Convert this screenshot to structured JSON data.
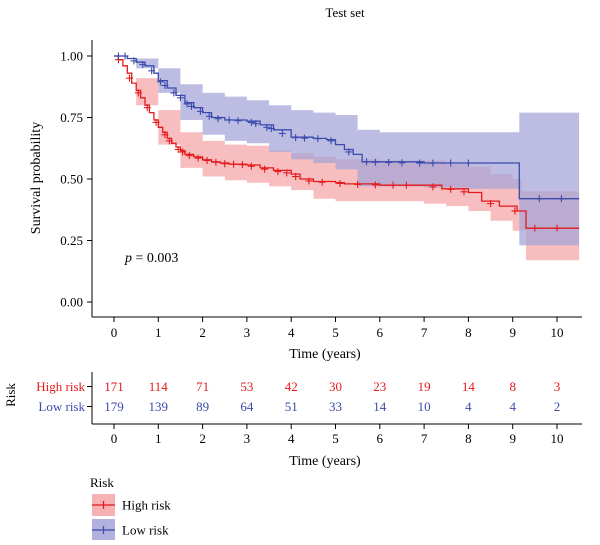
{
  "chart_data": {
    "type": "line",
    "title": "Test set",
    "xlabel": "Time (years)",
    "ylabel": "Survival probability",
    "xlim": [
      -0.5,
      10.5
    ],
    "ylim": [
      0,
      1
    ],
    "xticks": [
      "0",
      "1",
      "2",
      "3",
      "4",
      "5",
      "6",
      "7",
      "8",
      "9",
      "10"
    ],
    "yticks": [
      "0.00",
      "0.25",
      "0.50",
      "0.75",
      "1.00"
    ],
    "annotation": {
      "label": "p",
      "text": " = 0.003",
      "x": 0.2,
      "y": 0.36
    },
    "series": [
      {
        "name": "High risk",
        "color": "#e41a1c",
        "fill": "#f5a3a5",
        "curve": [
          [
            0,
            1.0
          ],
          [
            0.1,
            0.985
          ],
          [
            0.2,
            0.96
          ],
          [
            0.3,
            0.93
          ],
          [
            0.4,
            0.89
          ],
          [
            0.5,
            0.86
          ],
          [
            0.6,
            0.83
          ],
          [
            0.7,
            0.8
          ],
          [
            0.8,
            0.77
          ],
          [
            0.9,
            0.74
          ],
          [
            1.0,
            0.71
          ],
          [
            1.1,
            0.69
          ],
          [
            1.2,
            0.665
          ],
          [
            1.3,
            0.645
          ],
          [
            1.4,
            0.63
          ],
          [
            1.5,
            0.615
          ],
          [
            1.6,
            0.6
          ],
          [
            1.8,
            0.59
          ],
          [
            2.0,
            0.578
          ],
          [
            2.2,
            0.57
          ],
          [
            2.4,
            0.565
          ],
          [
            2.6,
            0.56
          ],
          [
            2.8,
            0.56
          ],
          [
            3.0,
            0.557
          ],
          [
            3.3,
            0.545
          ],
          [
            3.6,
            0.535
          ],
          [
            4.0,
            0.52
          ],
          [
            4.2,
            0.5
          ],
          [
            4.5,
            0.49
          ],
          [
            5.0,
            0.485
          ],
          [
            5.2,
            0.48
          ],
          [
            6.0,
            0.475
          ],
          [
            7.0,
            0.475
          ],
          [
            7.4,
            0.46
          ],
          [
            8.0,
            0.445
          ],
          [
            8.3,
            0.41
          ],
          [
            8.7,
            0.39
          ],
          [
            9.1,
            0.37
          ],
          [
            9.3,
            0.3
          ],
          [
            10.5,
            0.3
          ]
        ],
        "ci_upper": [
          [
            0,
            1.0
          ],
          [
            0.5,
            0.91
          ],
          [
            1.0,
            0.78
          ],
          [
            1.5,
            0.69
          ],
          [
            2.0,
            0.655
          ],
          [
            2.5,
            0.64
          ],
          [
            3.0,
            0.635
          ],
          [
            3.5,
            0.615
          ],
          [
            4.0,
            0.605
          ],
          [
            4.5,
            0.59
          ],
          [
            5.0,
            0.58
          ],
          [
            6.0,
            0.575
          ],
          [
            7.0,
            0.575
          ],
          [
            7.5,
            0.56
          ],
          [
            8.0,
            0.55
          ],
          [
            8.5,
            0.52
          ],
          [
            9.0,
            0.5
          ],
          [
            9.2,
            0.45
          ],
          [
            10.5,
            0.45
          ]
        ],
        "ci_lower": [
          [
            0,
            1.0
          ],
          [
            0.5,
            0.8
          ],
          [
            1.0,
            0.64
          ],
          [
            1.5,
            0.545
          ],
          [
            2.0,
            0.51
          ],
          [
            2.5,
            0.495
          ],
          [
            3.0,
            0.485
          ],
          [
            3.5,
            0.47
          ],
          [
            4.0,
            0.455
          ],
          [
            4.5,
            0.42
          ],
          [
            5.0,
            0.41
          ],
          [
            6.0,
            0.41
          ],
          [
            7.0,
            0.4
          ],
          [
            7.5,
            0.39
          ],
          [
            8.0,
            0.37
          ],
          [
            8.5,
            0.33
          ],
          [
            9.0,
            0.29
          ],
          [
            9.3,
            0.17
          ],
          [
            10.5,
            0.17
          ]
        ],
        "censors": [
          [
            0.1,
            0.985
          ],
          [
            0.35,
            0.91
          ],
          [
            0.55,
            0.85
          ],
          [
            0.75,
            0.79
          ],
          [
            0.95,
            0.73
          ],
          [
            1.15,
            0.68
          ],
          [
            1.25,
            0.655
          ],
          [
            1.45,
            0.62
          ],
          [
            1.55,
            0.61
          ],
          [
            1.7,
            0.595
          ],
          [
            1.9,
            0.585
          ],
          [
            2.1,
            0.575
          ],
          [
            2.3,
            0.568
          ],
          [
            2.5,
            0.562
          ],
          [
            2.7,
            0.56
          ],
          [
            2.9,
            0.558
          ],
          [
            3.1,
            0.552
          ],
          [
            3.4,
            0.54
          ],
          [
            3.7,
            0.53
          ],
          [
            3.9,
            0.525
          ],
          [
            4.1,
            0.51
          ],
          [
            4.4,
            0.492
          ],
          [
            4.7,
            0.487
          ],
          [
            5.1,
            0.482
          ],
          [
            5.5,
            0.478
          ],
          [
            5.9,
            0.476
          ],
          [
            6.3,
            0.475
          ],
          [
            6.6,
            0.475
          ],
          [
            7.2,
            0.468
          ],
          [
            7.6,
            0.458
          ],
          [
            7.9,
            0.448
          ],
          [
            8.5,
            0.4
          ],
          [
            9.05,
            0.37
          ],
          [
            9.5,
            0.3
          ],
          [
            10.0,
            0.3
          ]
        ]
      },
      {
        "name": "Low risk",
        "color": "#3a4bab",
        "fill": "#a4a3d8",
        "curve": [
          [
            0,
            1.0
          ],
          [
            0.2,
            1.0
          ],
          [
            0.3,
            0.99
          ],
          [
            0.5,
            0.975
          ],
          [
            0.7,
            0.96
          ],
          [
            0.9,
            0.93
          ],
          [
            1.0,
            0.9
          ],
          [
            1.2,
            0.87
          ],
          [
            1.4,
            0.84
          ],
          [
            1.6,
            0.81
          ],
          [
            1.8,
            0.79
          ],
          [
            2.0,
            0.77
          ],
          [
            2.2,
            0.75
          ],
          [
            2.5,
            0.74
          ],
          [
            3.0,
            0.735
          ],
          [
            3.3,
            0.72
          ],
          [
            3.6,
            0.7
          ],
          [
            4.0,
            0.67
          ],
          [
            4.5,
            0.665
          ],
          [
            4.8,
            0.66
          ],
          [
            5.0,
            0.64
          ],
          [
            5.2,
            0.62
          ],
          [
            5.4,
            0.6
          ],
          [
            5.6,
            0.57
          ],
          [
            7.0,
            0.565
          ],
          [
            9.1,
            0.565
          ],
          [
            9.15,
            0.42
          ],
          [
            10.5,
            0.42
          ]
        ],
        "ci_upper": [
          [
            0,
            1.0
          ],
          [
            0.5,
            0.99
          ],
          [
            1.0,
            0.95
          ],
          [
            1.5,
            0.885
          ],
          [
            2.0,
            0.85
          ],
          [
            2.5,
            0.835
          ],
          [
            3.0,
            0.82
          ],
          [
            3.5,
            0.8
          ],
          [
            4.0,
            0.78
          ],
          [
            4.5,
            0.77
          ],
          [
            5.0,
            0.76
          ],
          [
            5.5,
            0.7
          ],
          [
            6.0,
            0.69
          ],
          [
            7.0,
            0.69
          ],
          [
            9.1,
            0.69
          ],
          [
            9.15,
            0.77
          ],
          [
            10.5,
            0.77
          ]
        ],
        "ci_lower": [
          [
            0,
            1.0
          ],
          [
            0.5,
            0.95
          ],
          [
            1.0,
            0.85
          ],
          [
            1.5,
            0.74
          ],
          [
            2.0,
            0.68
          ],
          [
            2.5,
            0.655
          ],
          [
            3.0,
            0.645
          ],
          [
            3.5,
            0.61
          ],
          [
            4.0,
            0.58
          ],
          [
            4.5,
            0.565
          ],
          [
            5.0,
            0.54
          ],
          [
            5.5,
            0.47
          ],
          [
            6.0,
            0.47
          ],
          [
            7.0,
            0.465
          ],
          [
            8.0,
            0.46
          ],
          [
            9.1,
            0.46
          ],
          [
            9.15,
            0.23
          ],
          [
            10.5,
            0.23
          ]
        ],
        "censors": [
          [
            0.1,
            1.0
          ],
          [
            0.25,
            1.0
          ],
          [
            0.45,
            0.98
          ],
          [
            0.65,
            0.965
          ],
          [
            0.85,
            0.94
          ],
          [
            1.05,
            0.895
          ],
          [
            1.15,
            0.88
          ],
          [
            1.35,
            0.85
          ],
          [
            1.5,
            0.83
          ],
          [
            1.65,
            0.805
          ],
          [
            1.75,
            0.795
          ],
          [
            1.95,
            0.775
          ],
          [
            2.15,
            0.755
          ],
          [
            2.35,
            0.745
          ],
          [
            2.6,
            0.74
          ],
          [
            2.8,
            0.737
          ],
          [
            3.1,
            0.73
          ],
          [
            3.2,
            0.725
          ],
          [
            3.45,
            0.71
          ],
          [
            3.55,
            0.705
          ],
          [
            3.8,
            0.685
          ],
          [
            4.1,
            0.668
          ],
          [
            4.3,
            0.666
          ],
          [
            4.6,
            0.664
          ],
          [
            4.9,
            0.655
          ],
          [
            5.3,
            0.61
          ],
          [
            5.7,
            0.57
          ],
          [
            5.9,
            0.568
          ],
          [
            6.2,
            0.567
          ],
          [
            6.5,
            0.566
          ],
          [
            6.9,
            0.565
          ],
          [
            7.2,
            0.565
          ],
          [
            7.6,
            0.565
          ],
          [
            8.0,
            0.565
          ],
          [
            9.6,
            0.42
          ],
          [
            10.1,
            0.42
          ]
        ]
      }
    ]
  },
  "risk_table": {
    "title": "Risk",
    "xlabel": "Time (years)",
    "xticks": [
      "0",
      "1",
      "2",
      "3",
      "4",
      "5",
      "6",
      "7",
      "8",
      "9",
      "10"
    ],
    "rows": [
      {
        "label": "High risk",
        "color": "#e41a1c",
        "counts": [
          "171",
          "114",
          "71",
          "53",
          "42",
          "30",
          "23",
          "19",
          "14",
          "8",
          "3"
        ]
      },
      {
        "label": "Low risk",
        "color": "#3a4bab",
        "counts": [
          "179",
          "139",
          "89",
          "64",
          "51",
          "33",
          "14",
          "10",
          "4",
          "4",
          "2"
        ]
      }
    ]
  },
  "legend": {
    "title": "Risk",
    "items": [
      {
        "label": "High risk",
        "color": "#e41a1c",
        "fill": "#f5a3a5"
      },
      {
        "label": "Low risk",
        "color": "#3a4bab",
        "fill": "#a4a3d8"
      }
    ]
  }
}
